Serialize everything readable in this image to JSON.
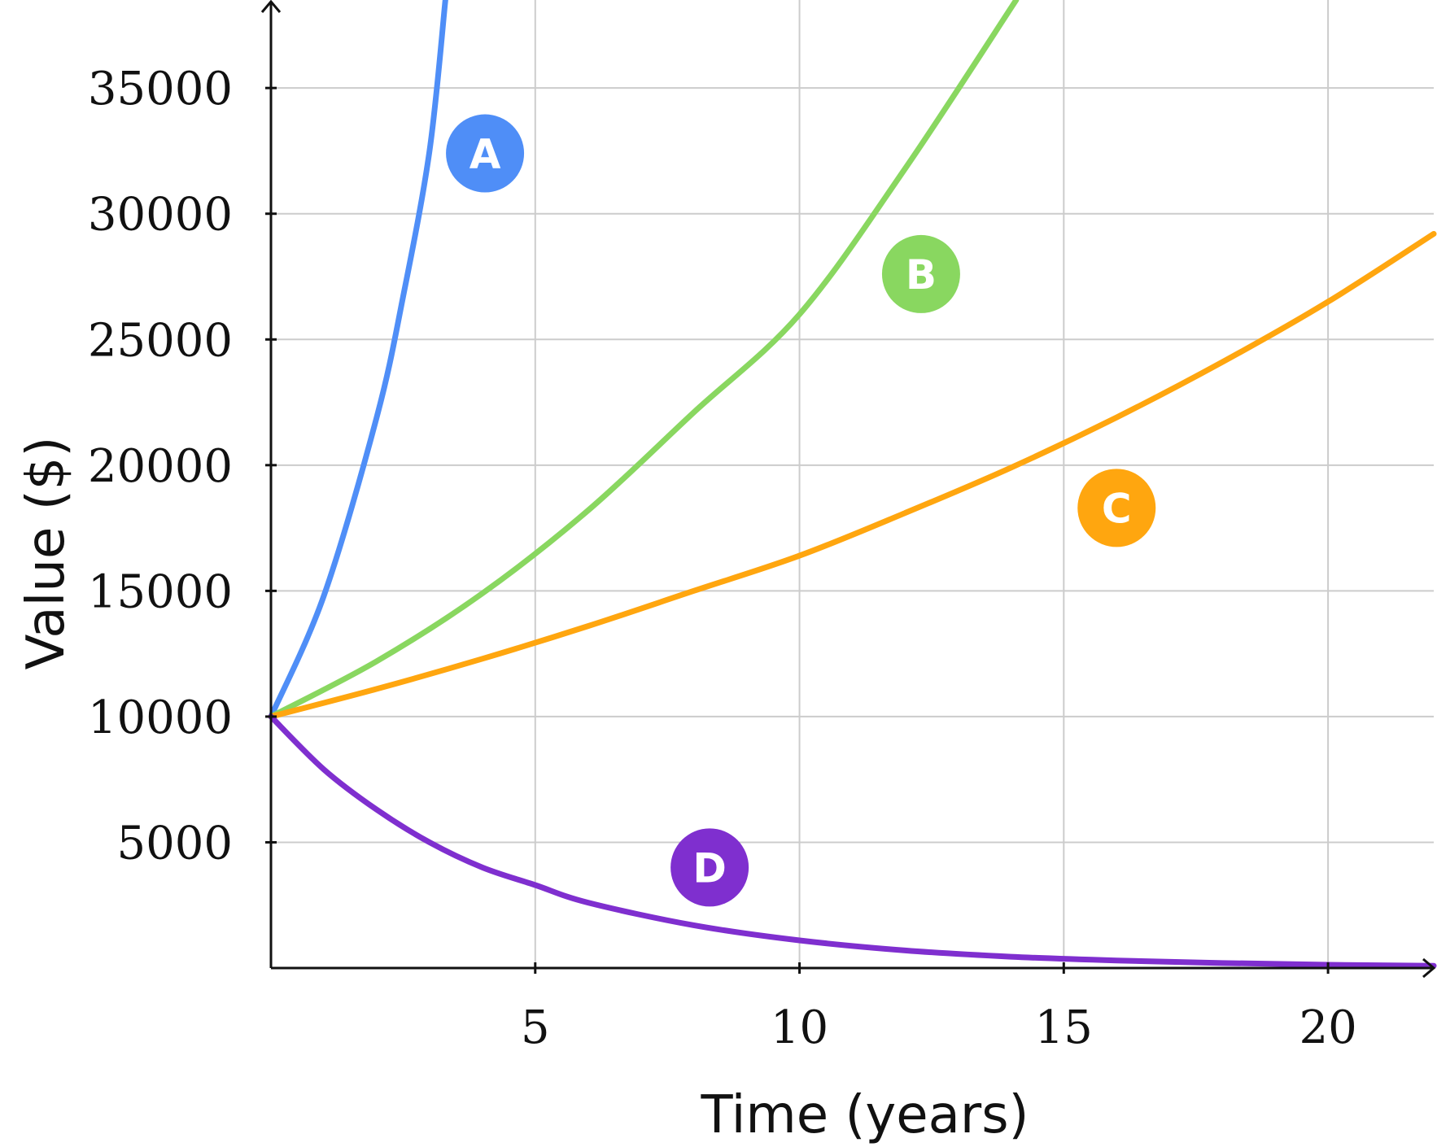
{
  "chart_data": {
    "type": "line",
    "xlabel": "Time (years)",
    "ylabel": "Value ($)",
    "xlim": [
      0,
      22
    ],
    "ylim": [
      0,
      38500
    ],
    "x_ticks": [
      5,
      10,
      15,
      20
    ],
    "y_ticks": [
      5000,
      10000,
      15000,
      20000,
      25000,
      30000,
      35000
    ],
    "grid": true,
    "series": [
      {
        "name": "A",
        "color": "#4f8ef7",
        "x": [
          0,
          1,
          2,
          2.5,
          3,
          3.3
        ],
        "values": [
          10000,
          14800,
          21900,
          26700,
          32500,
          38500
        ],
        "label_at": [
          4.05,
          32400
        ]
      },
      {
        "name": "B",
        "color": "#89d760",
        "x": [
          0,
          2,
          4,
          6,
          8,
          10,
          12,
          14.1
        ],
        "values": [
          10000,
          12200,
          14900,
          18200,
          22100,
          26000,
          31800,
          38500
        ],
        "label_at": [
          12.3,
          27600
        ]
      },
      {
        "name": "C",
        "color": "#ffa60f",
        "x": [
          0,
          2,
          4,
          6,
          8,
          10,
          12,
          14,
          16,
          18,
          20,
          22
        ],
        "values": [
          10000,
          11100,
          12300,
          13600,
          15000,
          16400,
          18100,
          19900,
          21900,
          24100,
          26500,
          29200
        ],
        "label_at": [
          16,
          18300
        ]
      },
      {
        "name": "D",
        "color": "#7f2fcf",
        "x": [
          0,
          1,
          2,
          3,
          4,
          5,
          6,
          8,
          10,
          12,
          14,
          16,
          18,
          20,
          22
        ],
        "values": [
          10000,
          7900,
          6300,
          5000,
          4000,
          3300,
          2600,
          1700,
          1100,
          700,
          450,
          300,
          200,
          130,
          90
        ],
        "label_at": [
          8.3,
          4000
        ]
      }
    ]
  }
}
